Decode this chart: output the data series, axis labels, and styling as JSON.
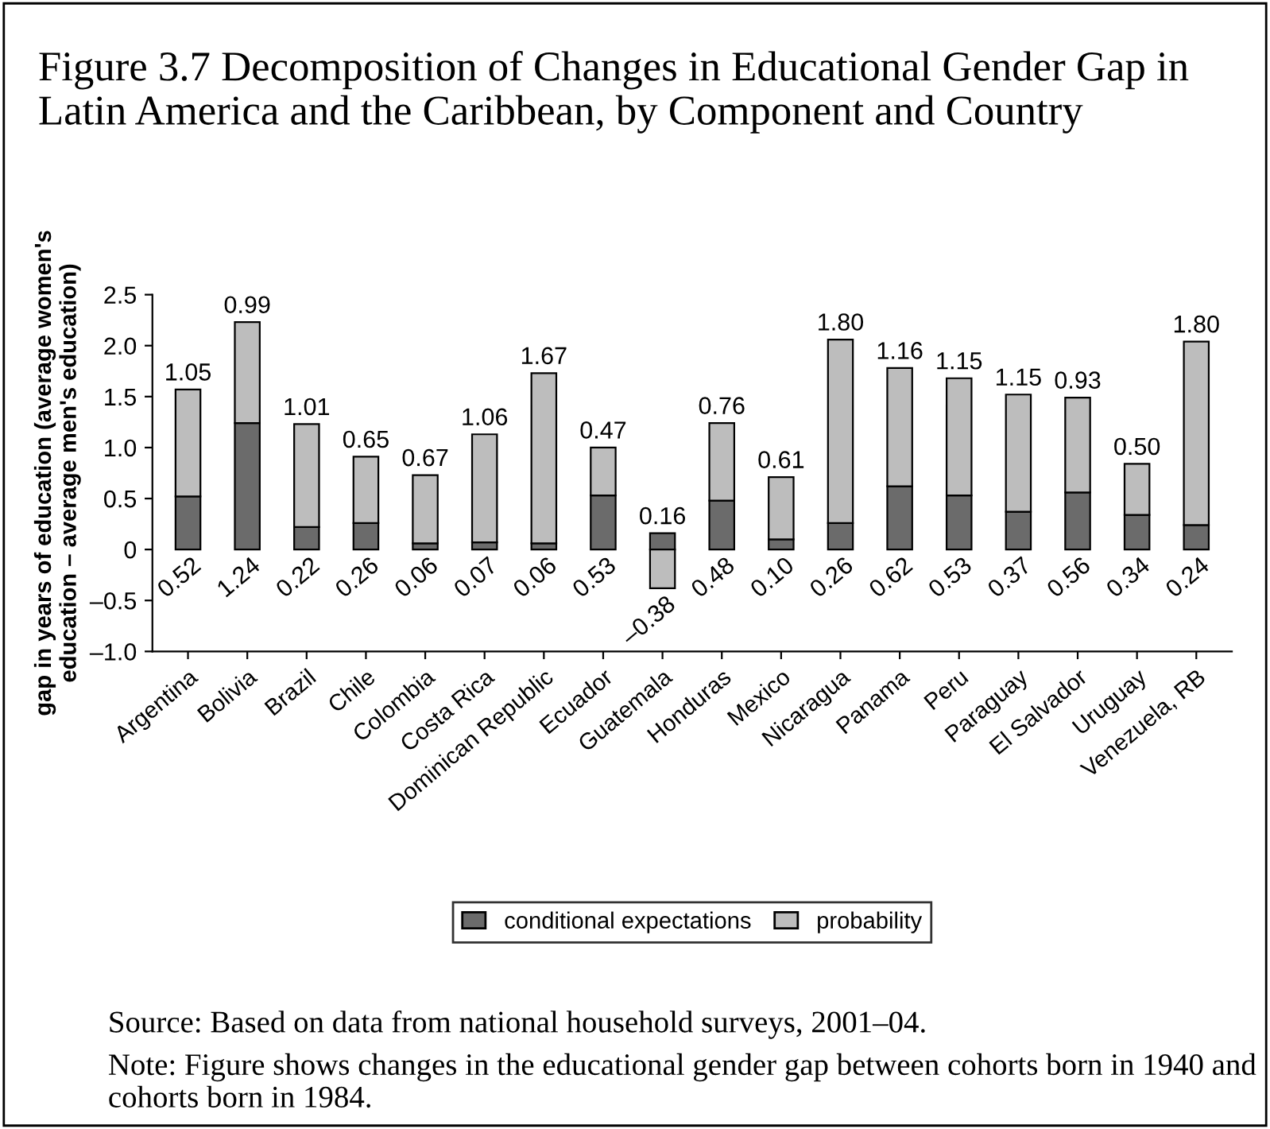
{
  "chart_data": {
    "type": "bar",
    "stacked": true,
    "title": "Figure 3.7 Decomposition of Changes in Educational Gender Gap in Latin America and the Caribbean, by Component and Country",
    "ylabel": "gap in years of education (average women's\neducation – average men's education)",
    "categories": [
      "Argentina",
      "Bolivia",
      "Brazil",
      "Chile",
      "Colombia",
      "Costa Rica",
      "Dominican Republic",
      "Ecuador",
      "Guatemala",
      "Honduras",
      "Mexico",
      "Nicaragua",
      "Panama",
      "Peru",
      "Paraguay",
      "El Salvador",
      "Uruguay",
      "Venezuela, RB"
    ],
    "series": [
      {
        "name": "conditional expectations",
        "color": "#6b6b6b",
        "values": [
          0.52,
          1.24,
          0.22,
          0.26,
          0.06,
          0.07,
          0.06,
          0.53,
          0.16,
          0.48,
          0.1,
          0.26,
          0.62,
          0.53,
          0.37,
          0.56,
          0.34,
          0.24
        ],
        "value_labels": [
          "0.52",
          "1.24",
          "0.22",
          "0.26",
          "0.06",
          "0.07",
          "0.06",
          "0.53",
          "0.16",
          "0.48",
          "0.10",
          "0.26",
          "0.62",
          "0.53",
          "0.37",
          "0.56",
          "0.34",
          "0.24"
        ]
      },
      {
        "name": "probability",
        "color": "#bdbdbd",
        "values": [
          1.05,
          0.99,
          1.01,
          0.65,
          0.67,
          1.06,
          1.67,
          0.47,
          -0.38,
          0.76,
          0.61,
          1.8,
          1.16,
          1.15,
          1.15,
          0.93,
          0.5,
          1.8
        ],
        "value_labels": [
          "1.05",
          "0.99",
          "1.01",
          "0.65",
          "0.67",
          "1.06",
          "1.67",
          "0.47",
          "–0.38",
          "0.76",
          "0.61",
          "1.80",
          "1.16",
          "1.15",
          "1.15",
          "0.93",
          "0.50",
          "1.80"
        ]
      }
    ],
    "ylim": [
      -1.0,
      2.5
    ],
    "yticks": [
      {
        "value": -1.0,
        "label": "–1.0"
      },
      {
        "value": -0.5,
        "label": "–0.5"
      },
      0,
      0.5,
      {
        "value": 1.0,
        "label": "1.0"
      },
      1.5,
      {
        "value": 2.0,
        "label": "2.0"
      },
      2.5
    ],
    "legend": "bottom",
    "annotations": [
      "Source: Based on data from national household surveys, 2001–04.",
      "Note: Figure shows changes in the educational gender gap between cohorts born in 1940 and cohorts born in 1984."
    ]
  }
}
